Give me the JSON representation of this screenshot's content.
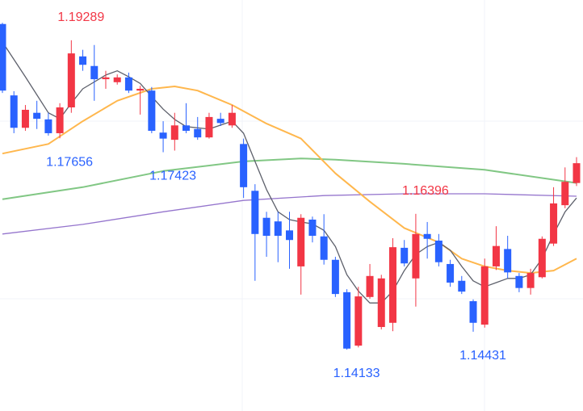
{
  "chart_data": {
    "type": "candlestick",
    "ylim": [
      1.1311,
      1.1996
    ],
    "up_color": "#f23645",
    "down_color": "#2962ff",
    "open": [
      1.1956,
      1.1837,
      1.1783,
      1.1808,
      1.1797,
      1.1774,
      1.1817,
      1.1902,
      1.1886,
      1.1864,
      1.1859,
      1.1867,
      1.1845,
      1.1845,
      1.1775,
      1.1763,
      1.1787,
      1.1781,
      1.1767,
      1.1798,
      1.1787,
      1.1756,
      1.1678,
      1.1633,
      1.1627,
      1.1612,
      1.1552,
      1.163,
      1.1602,
      1.1563,
      1.1509,
      1.142,
      1.1501,
      1.1451,
      1.1458,
      1.1583,
      1.1532,
      1.1606,
      1.1595,
      1.1556,
      1.1528,
      1.1494,
      1.1455,
      1.1552,
      1.1581,
      1.1536,
      1.1516,
      1.1534,
      1.159,
      1.1654,
      1.1691
    ],
    "high": [
      1.1958,
      1.1844,
      1.1821,
      1.1828,
      1.1808,
      1.1824,
      1.19289,
      1.1913,
      1.1921,
      1.1878,
      1.1872,
      1.1875,
      1.1853,
      1.1851,
      1.1794,
      1.1808,
      1.1824,
      1.1801,
      1.1808,
      1.1808,
      1.1821,
      1.1765,
      1.1689,
      1.1643,
      1.1643,
      1.1643,
      1.1639,
      1.1635,
      1.1639,
      1.1568,
      1.1514,
      1.1518,
      1.1556,
      1.1538,
      1.1599,
      1.1596,
      1.16396,
      1.1626,
      1.1606,
      1.1563,
      1.1536,
      1.1497,
      1.1565,
      1.1619,
      1.1603,
      1.1541,
      1.1548,
      1.1602,
      1.1684,
      1.1717,
      1.1734
    ],
    "low": [
      1.1841,
      1.1774,
      1.1778,
      1.1781,
      1.177,
      1.17656,
      1.1808,
      1.1878,
      1.1828,
      1.1848,
      1.1855,
      1.1841,
      1.1805,
      1.1774,
      1.17423,
      1.1745,
      1.1774,
      1.1763,
      1.1765,
      1.1786,
      1.1783,
      1.1666,
      1.1528,
      1.1568,
      1.1559,
      1.1548,
      1.1505,
      1.1592,
      1.1555,
      1.1501,
      1.14133,
      1.1417,
      1.1498,
      1.1447,
      1.1444,
      1.1552,
      1.1485,
      1.1565,
      1.1552,
      1.1518,
      1.1506,
      1.14431,
      1.145,
      1.1546,
      1.1532,
      1.1509,
      1.1505,
      1.1532,
      1.1586,
      1.1649,
      1.1686
    ],
    "close": [
      1.1845,
      1.1783,
      1.1813,
      1.1798,
      1.1774,
      1.1817,
      1.1907,
      1.1888,
      1.1864,
      1.1867,
      1.1867,
      1.1845,
      1.1848,
      1.1778,
      1.1765,
      1.1787,
      1.1778,
      1.1767,
      1.1801,
      1.1791,
      1.1808,
      1.1684,
      1.1606,
      1.1603,
      1.1603,
      1.1596,
      1.1633,
      1.1603,
      1.1563,
      1.1506,
      1.1415,
      1.1502,
      1.1536,
      1.1532,
      1.1584,
      1.1557,
      1.1606,
      1.1598,
      1.1559,
      1.1525,
      1.151,
      1.1458,
      1.1552,
      1.1586,
      1.1542,
      1.1516,
      1.1541,
      1.1598,
      1.1657,
      1.1693,
      1.1724
    ],
    "moving_averages": [
      {
        "color": "#9575cd",
        "width": 1.3,
        "x": [
          0,
          7,
          14,
          21,
          28,
          35,
          42,
          50
        ],
        "values": [
          1.1606,
          1.1622,
          1.1643,
          1.1662,
          1.167,
          1.1673,
          1.1673,
          1.1669
        ]
      },
      {
        "color": "#81c784",
        "width": 2,
        "x": [
          0,
          7,
          14,
          21,
          26,
          29,
          35,
          42,
          50
        ],
        "values": [
          1.1664,
          1.1684,
          1.1711,
          1.1727,
          1.1732,
          1.173,
          1.1723,
          1.1713,
          1.1691
        ]
      },
      {
        "color": "#ffb74d",
        "width": 2,
        "x": [
          0,
          4,
          7,
          10,
          13,
          15,
          17,
          20,
          23,
          26,
          29,
          32,
          35,
          38,
          40,
          42,
          44,
          46,
          48,
          50
        ],
        "values": [
          1.174,
          1.1756,
          1.1794,
          1.1828,
          1.1848,
          1.1852,
          1.1845,
          1.1821,
          1.179,
          1.1765,
          1.1707,
          1.166,
          1.1616,
          1.1592,
          1.1565,
          1.1552,
          1.1545,
          1.1541,
          1.1545,
          1.1565
        ]
      },
      {
        "color": "#5d606b",
        "width": 1.3,
        "x": [
          0,
          2,
          4,
          5,
          6,
          7,
          9,
          10,
          11,
          12,
          13,
          14,
          15,
          16,
          18,
          20,
          21,
          22,
          23,
          24,
          25,
          26,
          27,
          28,
          29,
          30,
          31,
          32,
          33,
          34,
          35,
          36,
          37,
          38,
          39,
          40,
          41,
          42,
          43,
          44,
          45,
          46,
          47,
          48,
          49,
          50
        ],
        "values": [
          1.1926,
          1.1868,
          1.1808,
          1.1798,
          1.1824,
          1.1848,
          1.1871,
          1.1878,
          1.1868,
          1.1857,
          1.1835,
          1.1814,
          1.1797,
          1.1785,
          1.1781,
          1.1794,
          1.1774,
          1.1727,
          1.168,
          1.1643,
          1.163,
          1.1626,
          1.1623,
          1.1612,
          1.1585,
          1.1538,
          1.1511,
          1.1491,
          1.1491,
          1.1511,
          1.1545,
          1.1572,
          1.1585,
          1.1592,
          1.1579,
          1.1552,
          1.1528,
          1.1518,
          1.1525,
          1.1532,
          1.1532,
          1.1538,
          1.1565,
          1.1606,
          1.1643,
          1.1666
        ]
      }
    ],
    "annotations": [
      {
        "value": 1.19289,
        "index": 6,
        "position": "above",
        "color": "#f23645"
      },
      {
        "value": 1.17656,
        "index": 5,
        "position": "below",
        "color": "#2962ff"
      },
      {
        "value": 1.17423,
        "index": 14,
        "position": "below",
        "color": "#2962ff"
      },
      {
        "value": 1.16396,
        "index": 36,
        "position": "above",
        "color": "#f23645"
      },
      {
        "value": 1.14133,
        "index": 30,
        "position": "below",
        "color": "#2962ff"
      },
      {
        "value": 1.14431,
        "index": 41,
        "position": "below",
        "color": "#2962ff"
      }
    ]
  }
}
